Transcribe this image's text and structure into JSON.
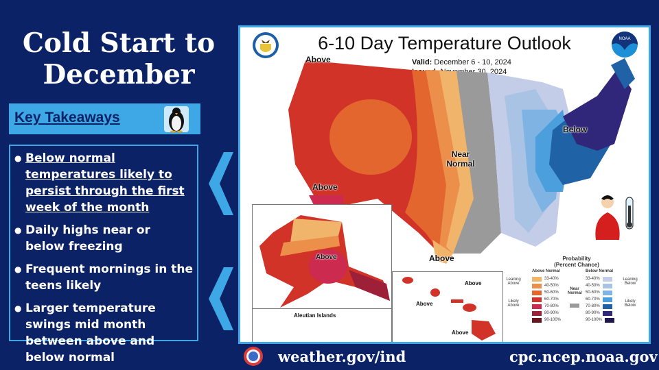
{
  "title": {
    "line1": "Cold Start to",
    "line2": "December"
  },
  "key_takeaways": {
    "label": "Key Takeaways",
    "icon": "penguin-icon",
    "bullets": [
      {
        "text": "Below normal temperatures likely to persist through the first week of the month",
        "underlined": true
      },
      {
        "text": "Daily highs near or below freezing",
        "underlined": false
      },
      {
        "text": "Frequent mornings in the teens likely",
        "underlined": false
      },
      {
        "text": "Larger temperature swings mid month between above and below normal",
        "underlined": false
      }
    ]
  },
  "map": {
    "title": "6-10 Day Temperature Outlook",
    "valid_label": "Valid:",
    "valid_value": "December 6 - 10, 2024",
    "issued_label": "Issued:",
    "issued_value": "November 30, 2024",
    "region_labels": {
      "pacific_nw": "Above",
      "southern_ca": "Above",
      "plains": "Near Normal",
      "texas": "Above",
      "northeast": "Below",
      "alaska": "Above",
      "aleutian_title": "Aleutian Islands",
      "hawaii_1": "Above",
      "hawaii_2": "Above",
      "hawaii_3": "Above"
    },
    "legend": {
      "title": "Probability",
      "subtitle": "(Percent Chance)",
      "above_header": "Above Normal",
      "below_header": "Below Normal",
      "near_normal": "Near Normal",
      "leaning_above": "Leaning Above",
      "likely_above": "Likely Above",
      "leaning_below": "Leaning Below",
      "likely_below": "Likely Below",
      "above_bins": [
        {
          "range": "33-40%",
          "color": "#f0b46a"
        },
        {
          "range": "40-50%",
          "color": "#ec8f4a"
        },
        {
          "range": "50-60%",
          "color": "#e4662f"
        },
        {
          "range": "60-70%",
          "color": "#d13328"
        },
        {
          "range": "70-80%",
          "color": "#cc2a4e"
        },
        {
          "range": "80-90%",
          "color": "#9e2038"
        },
        {
          "range": "90-100%",
          "color": "#6b1520"
        }
      ],
      "near_color": "#9a9a9a",
      "below_bins": [
        {
          "range": "33-40%",
          "color": "#c3cde8"
        },
        {
          "range": "40-50%",
          "color": "#a9c3e4"
        },
        {
          "range": "50-60%",
          "color": "#7fb3e3"
        },
        {
          "range": "60-70%",
          "color": "#4a9fdc"
        },
        {
          "range": "70-80%",
          "color": "#1f62a6"
        },
        {
          "range": "80-90%",
          "color": "#30277a"
        },
        {
          "range": "90-100%",
          "color": "#221a4f"
        }
      ]
    }
  },
  "footer": {
    "left_url": "weather.gov/ind",
    "right_url": "cpc.ncep.noaa.gov"
  },
  "colors": {
    "background": "#0b2266",
    "accent": "#3ea7e6"
  }
}
